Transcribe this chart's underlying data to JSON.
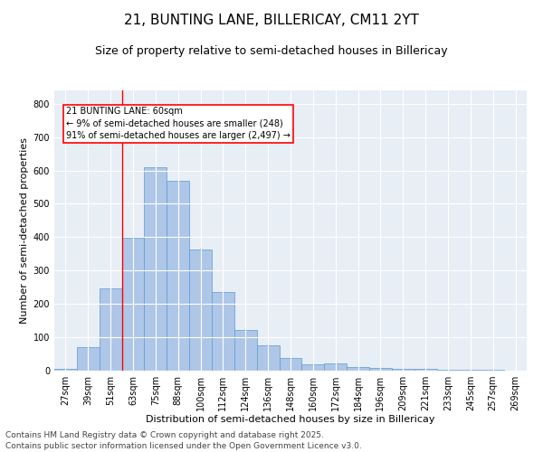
{
  "title1": "21, BUNTING LANE, BILLERICAY, CM11 2YT",
  "title2": "Size of property relative to semi-detached houses in Billericay",
  "xlabel": "Distribution of semi-detached houses by size in Billericay",
  "ylabel": "Number of semi-detached properties",
  "bar_labels": [
    "27sqm",
    "39sqm",
    "51sqm",
    "63sqm",
    "75sqm",
    "88sqm",
    "100sqm",
    "112sqm",
    "124sqm",
    "136sqm",
    "148sqm",
    "160sqm",
    "172sqm",
    "184sqm",
    "196sqm",
    "209sqm",
    "221sqm",
    "233sqm",
    "245sqm",
    "257sqm",
    "269sqm"
  ],
  "bar_values": [
    5,
    70,
    247,
    397,
    610,
    568,
    363,
    237,
    123,
    75,
    37,
    20,
    22,
    11,
    7,
    5,
    5,
    3,
    3,
    2,
    1
  ],
  "bar_color": "#aec6e8",
  "bar_edgecolor": "#5b9bd5",
  "annotation_text": "21 BUNTING LANE: 60sqm\n← 9% of semi-detached houses are smaller (248)\n91% of semi-detached houses are larger (2,497) →",
  "annotation_box_edgecolor": "red",
  "vline_color": "red",
  "vline_x_index": 2.5,
  "ylim": [
    0,
    840
  ],
  "yticks": [
    0,
    100,
    200,
    300,
    400,
    500,
    600,
    700,
    800
  ],
  "background_color": "#e8eef5",
  "footnote1": "Contains HM Land Registry data © Crown copyright and database right 2025.",
  "footnote2": "Contains public sector information licensed under the Open Government Licence v3.0.",
  "title1_fontsize": 11,
  "title2_fontsize": 9,
  "axis_label_fontsize": 8,
  "tick_fontsize": 7,
  "annotation_fontsize": 7,
  "footnote_fontsize": 6.5
}
